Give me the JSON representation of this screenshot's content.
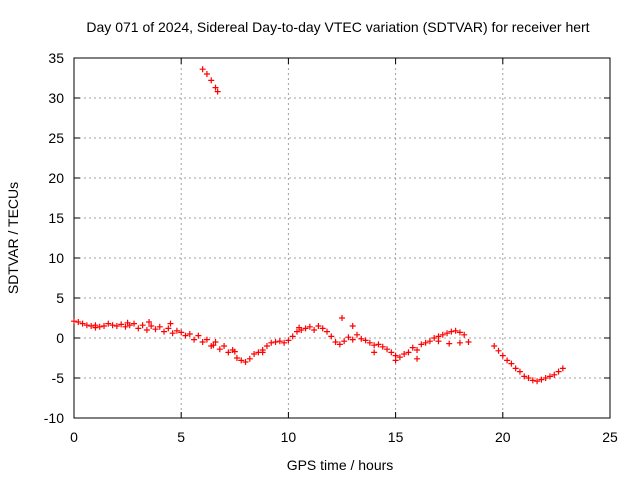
{
  "chart_data": {
    "type": "scatter",
    "title": "Day 071 of 2024, Sidereal Day-to-day VTEC variation (SDTVAR) for receiver hert",
    "xlabel": "GPS time / hours",
    "ylabel": "SDTVAR / TECUs",
    "xlim": [
      0,
      25
    ],
    "ylim": [
      -10,
      35
    ],
    "xticks": [
      0,
      5,
      10,
      15,
      20,
      25
    ],
    "yticks": [
      -10,
      -5,
      0,
      5,
      10,
      15,
      20,
      25,
      30,
      35
    ],
    "grid": true,
    "marker": "plus",
    "color": "#ff0000",
    "series": [
      {
        "name": "SDTVAR",
        "points": [
          [
            0.0,
            2.1
          ],
          [
            0.2,
            2.0
          ],
          [
            0.4,
            1.8
          ],
          [
            0.6,
            1.6
          ],
          [
            0.8,
            1.5
          ],
          [
            1.0,
            1.6
          ],
          [
            1.2,
            1.4
          ],
          [
            1.4,
            1.5
          ],
          [
            1.6,
            1.8
          ],
          [
            1.8,
            1.6
          ],
          [
            2.0,
            1.5
          ],
          [
            2.2,
            1.7
          ],
          [
            2.4,
            1.4
          ],
          [
            2.6,
            1.6
          ],
          [
            2.8,
            1.8
          ],
          [
            3.0,
            1.2
          ],
          [
            3.2,
            1.6
          ],
          [
            3.4,
            1.0
          ],
          [
            3.6,
            1.5
          ],
          [
            3.8,
            1.1
          ],
          [
            4.0,
            1.4
          ],
          [
            4.2,
            0.8
          ],
          [
            4.4,
            1.2
          ],
          [
            4.6,
            0.6
          ],
          [
            4.8,
            0.9
          ],
          [
            5.0,
            0.7
          ],
          [
            5.2,
            0.3
          ],
          [
            5.4,
            0.5
          ],
          [
            5.6,
            -0.2
          ],
          [
            5.8,
            0.3
          ],
          [
            6.0,
            -0.5
          ],
          [
            6.2,
            -0.2
          ],
          [
            6.4,
            -1.0
          ],
          [
            6.6,
            -0.5
          ],
          [
            6.8,
            -1.4
          ],
          [
            7.0,
            -1.0
          ],
          [
            7.2,
            -1.8
          ],
          [
            7.4,
            -1.5
          ],
          [
            7.6,
            -2.5
          ],
          [
            7.8,
            -2.8
          ],
          [
            8.0,
            -3.0
          ],
          [
            8.2,
            -2.6
          ],
          [
            8.4,
            -2.0
          ],
          [
            8.6,
            -1.8
          ],
          [
            8.8,
            -1.5
          ],
          [
            9.0,
            -1.0
          ],
          [
            9.2,
            -0.6
          ],
          [
            9.4,
            -0.5
          ],
          [
            9.6,
            -0.4
          ],
          [
            9.8,
            -0.6
          ],
          [
            10.0,
            -0.3
          ],
          [
            10.2,
            0.2
          ],
          [
            10.4,
            0.8
          ],
          [
            10.6,
            1.0
          ],
          [
            10.8,
            1.2
          ],
          [
            11.0,
            1.4
          ],
          [
            11.2,
            1.0
          ],
          [
            11.4,
            1.5
          ],
          [
            11.6,
            1.2
          ],
          [
            11.8,
            0.8
          ],
          [
            12.0,
            0.2
          ],
          [
            12.2,
            -0.5
          ],
          [
            12.4,
            -0.8
          ],
          [
            12.6,
            -0.4
          ],
          [
            12.8,
            0.1
          ],
          [
            13.0,
            -0.2
          ],
          [
            13.2,
            0.4
          ],
          [
            13.4,
            -0.1
          ],
          [
            13.6,
            -0.3
          ],
          [
            13.8,
            -0.6
          ],
          [
            14.0,
            -0.9
          ],
          [
            14.2,
            -0.8
          ],
          [
            14.4,
            -1.1
          ],
          [
            14.6,
            -1.4
          ],
          [
            14.8,
            -1.8
          ],
          [
            15.0,
            -2.2
          ],
          [
            15.2,
            -2.4
          ],
          [
            15.4,
            -2.0
          ],
          [
            15.6,
            -1.8
          ],
          [
            15.8,
            -1.2
          ],
          [
            16.0,
            -1.5
          ],
          [
            16.2,
            -0.8
          ],
          [
            16.4,
            -0.6
          ],
          [
            16.6,
            -0.4
          ],
          [
            16.8,
            0.0
          ],
          [
            17.0,
            0.2
          ],
          [
            17.2,
            0.4
          ],
          [
            17.4,
            0.6
          ],
          [
            17.6,
            0.8
          ],
          [
            17.8,
            0.9
          ],
          [
            18.0,
            0.7
          ],
          [
            18.2,
            0.4
          ],
          [
            18.4,
            -0.5
          ],
          [
            19.6,
            -1.0
          ],
          [
            19.8,
            -1.6
          ],
          [
            20.0,
            -2.2
          ],
          [
            20.2,
            -2.8
          ],
          [
            20.4,
            -3.2
          ],
          [
            20.6,
            -3.8
          ],
          [
            20.8,
            -4.2
          ],
          [
            21.0,
            -4.8
          ],
          [
            21.2,
            -5.0
          ],
          [
            21.4,
            -5.3
          ],
          [
            21.6,
            -5.4
          ],
          [
            21.8,
            -5.2
          ],
          [
            22.0,
            -5.0
          ],
          [
            22.2,
            -4.8
          ],
          [
            22.4,
            -4.6
          ],
          [
            22.6,
            -4.2
          ],
          [
            22.8,
            -3.8
          ],
          [
            6.0,
            33.6
          ],
          [
            6.2,
            33.0
          ],
          [
            6.4,
            32.2
          ],
          [
            6.6,
            31.3
          ],
          [
            6.7,
            30.8
          ],
          [
            1.0,
            1.3
          ],
          [
            2.5,
            1.9
          ],
          [
            3.5,
            2.0
          ],
          [
            4.5,
            1.8
          ],
          [
            6.5,
            -0.9
          ],
          [
            7.5,
            -1.7
          ],
          [
            8.8,
            -1.8
          ],
          [
            10.5,
            1.3
          ],
          [
            12.5,
            2.5
          ],
          [
            13.0,
            1.5
          ],
          [
            14.0,
            -1.8
          ],
          [
            15.0,
            -2.8
          ],
          [
            16.0,
            -2.6
          ],
          [
            17.0,
            -0.4
          ],
          [
            17.5,
            -0.7
          ],
          [
            18.0,
            -0.6
          ]
        ]
      }
    ]
  }
}
